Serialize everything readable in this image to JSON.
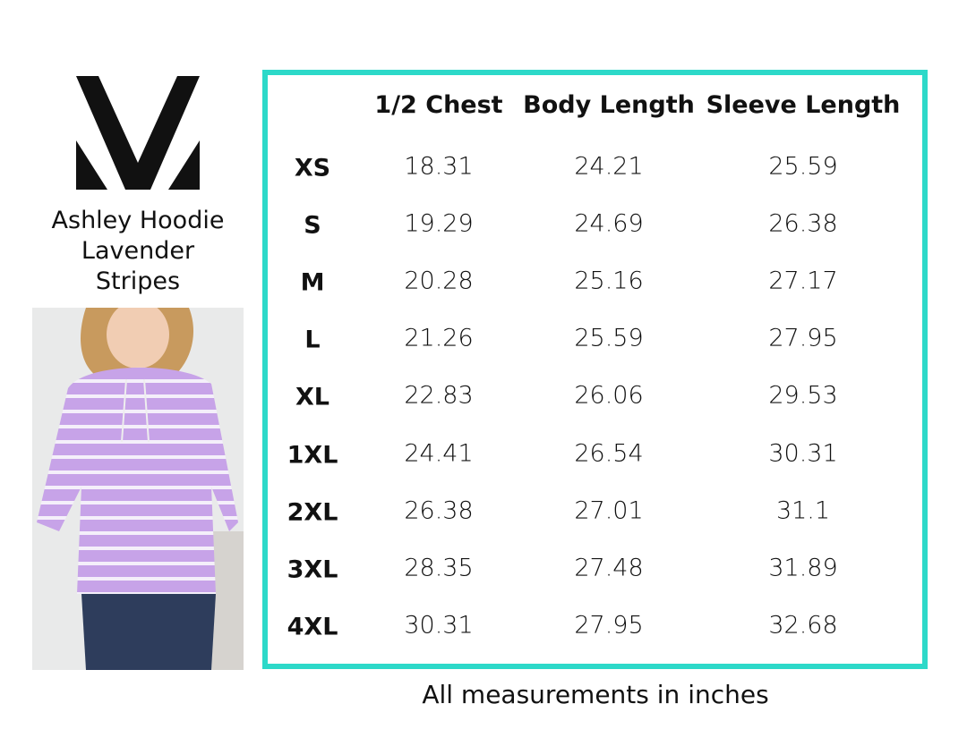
{
  "brand": {
    "logo_letter": "M",
    "accent_color": "#2dd9c9"
  },
  "product": {
    "title_lines": [
      "Ashley Hoodie",
      "Lavender",
      "Stripes"
    ],
    "photo": "model-wearing-lavender-striped-hoodie"
  },
  "table": {
    "headers": [
      "1/2 Chest",
      "Body Length",
      "Sleeve Length"
    ],
    "rows": [
      {
        "size": "XS",
        "chest": "18.31",
        "body": "24.21",
        "sleeve": "25.59"
      },
      {
        "size": "S",
        "chest": "19.29",
        "body": "24.69",
        "sleeve": "26.38"
      },
      {
        "size": "M",
        "chest": "20.28",
        "body": "25.16",
        "sleeve": "27.17"
      },
      {
        "size": "L",
        "chest": "21.26",
        "body": "25.59",
        "sleeve": "27.95"
      },
      {
        "size": "XL",
        "chest": "22.83",
        "body": "26.06",
        "sleeve": "29.53"
      },
      {
        "size": "1XL",
        "chest": "24.41",
        "body": "26.54",
        "sleeve": "30.31"
      },
      {
        "size": "2XL",
        "chest": "26.38",
        "body": "27.01",
        "sleeve": "31.1"
      },
      {
        "size": "3XL",
        "chest": "28.35",
        "body": "27.48",
        "sleeve": "31.89"
      },
      {
        "size": "4XL",
        "chest": "30.31",
        "body": "27.95",
        "sleeve": "32.68"
      }
    ]
  },
  "footer": "All measurements in inches"
}
